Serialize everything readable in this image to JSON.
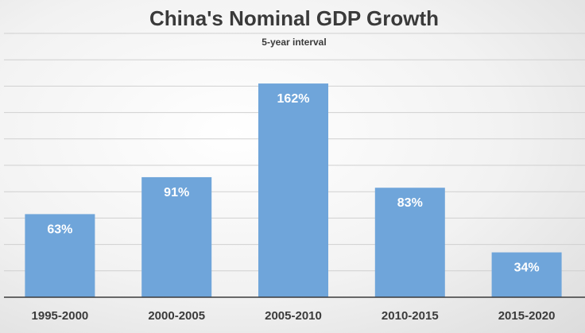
{
  "chart_data": {
    "type": "bar",
    "title": "China's Nominal GDP Growth",
    "subtitle": "5-year interval",
    "categories": [
      "1995-2000",
      "2000-2005",
      "2005-2010",
      "2010-2015",
      "2015-2020"
    ],
    "values": [
      63,
      91,
      162,
      83,
      34
    ],
    "value_labels": [
      "63%",
      "91%",
      "162%",
      "83%",
      "34%"
    ],
    "xlabel": "",
    "ylabel": "",
    "ylim": [
      0,
      200
    ],
    "grid": true,
    "legend": "none",
    "colors": {
      "bar": "#6fa5da",
      "grid": "#d0d0d0",
      "axis": "#3a3a3a"
    }
  }
}
